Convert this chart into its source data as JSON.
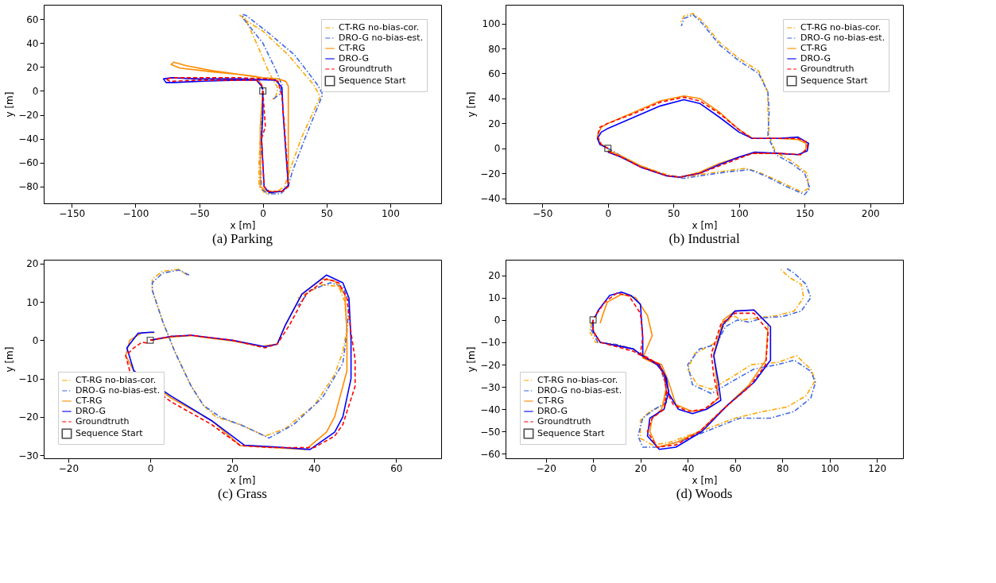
{
  "chart_data": [
    {
      "type": "line",
      "title": "(a) Parking",
      "xlabel": "x [m]",
      "ylabel": "y [m]",
      "xlim": [
        -172,
        140
      ],
      "ylim": [
        -94,
        72
      ],
      "xticks": [
        -150,
        -100,
        -50,
        0,
        50,
        100
      ],
      "yticks": [
        -80,
        -60,
        -40,
        -20,
        0,
        20,
        40,
        60
      ],
      "legend": "top right",
      "series": [
        {
          "name": "CT-RG no-bias-cor.",
          "color": "#ffa500",
          "line_style": "dashdot",
          "x": [
            0,
            -1,
            -2,
            -3,
            -3,
            2,
            10,
            17,
            20,
            30,
            45,
            40,
            20,
            0,
            -15,
            -18,
            -14,
            -5,
            5,
            12,
            10,
            6
          ],
          "values": [
            0,
            -20,
            -40,
            -60,
            -80,
            -86,
            -85,
            -80,
            -70,
            -40,
            -5,
            5,
            30,
            50,
            60,
            63,
            61,
            40,
            15,
            2,
            -5,
            -8
          ]
        },
        {
          "name": "DRO-G no-bias-est.",
          "color": "#4169e1",
          "line_style": "dashdot",
          "x": [
            0,
            -1,
            -1,
            -2,
            -1,
            4,
            14,
            20,
            23,
            33,
            47,
            43,
            25,
            5,
            -13,
            -16,
            -15,
            0,
            10,
            15,
            13,
            8
          ],
          "values": [
            0,
            -20,
            -40,
            -60,
            -82,
            -86,
            -86,
            -80,
            -68,
            -40,
            -3,
            5,
            30,
            48,
            63,
            64,
            60,
            40,
            18,
            5,
            -3,
            -7
          ]
        },
        {
          "name": "CT-RG",
          "color": "#ff8c00",
          "line_style": "solid",
          "x": [
            0,
            -2,
            -2,
            -2,
            3,
            15,
            20,
            20,
            20,
            20,
            18,
            12,
            0,
            -20,
            -40,
            -60,
            -70,
            -72,
            -65,
            -40,
            -20,
            -5,
            -1,
            0
          ],
          "values": [
            0,
            -30,
            -50,
            -80,
            -84,
            -84,
            -80,
            -50,
            -20,
            4,
            8,
            10,
            11,
            14,
            17,
            21,
            24,
            22,
            19,
            16,
            14,
            12,
            5,
            1.5
          ]
        },
        {
          "name": "DRO-G",
          "color": "#0000ff",
          "line_style": "solid",
          "x": [
            0,
            0,
            -1,
            0,
            1,
            5,
            15,
            20,
            18,
            16,
            15,
            10,
            -20,
            -50,
            -72,
            -78,
            -76,
            -70,
            -50,
            -20,
            -5,
            -1,
            0
          ],
          "values": [
            0,
            -20,
            -40,
            -60,
            -80,
            -85,
            -84,
            -79,
            -50,
            -20,
            3,
            9,
            10,
            10,
            11,
            10,
            7,
            7,
            8,
            9,
            9,
            4,
            1
          ]
        },
        {
          "name": "Groundtruth",
          "color": "#ff0000",
          "line_style": "dashed",
          "x": [
            0,
            1,
            2,
            -1,
            0,
            1,
            5,
            15,
            20,
            19,
            17,
            15,
            12,
            5,
            -20,
            -50,
            -70,
            -76,
            -73,
            -50,
            -20,
            -5,
            -1,
            0
          ],
          "values": [
            0,
            -15,
            -30,
            -40,
            -60,
            -80,
            -84,
            -84,
            -80,
            -60,
            -30,
            -5,
            8,
            10,
            11,
            11,
            11,
            10,
            8,
            9,
            9,
            9,
            5,
            1.5
          ]
        },
        {
          "name": "Sequence Start",
          "type": "scatter",
          "color": "#000000",
          "marker": "square",
          "x": [
            0
          ],
          "values": [
            0
          ]
        }
      ]
    },
    {
      "type": "line",
      "title": "(b) Industrial",
      "xlabel": "x [m]",
      "ylabel": "y [m]",
      "xlim": [
        -78,
        225
      ],
      "ylim": [
        -44,
        115
      ],
      "xticks": [
        -50,
        0,
        50,
        100,
        150,
        200
      ],
      "yticks": [
        -40,
        -20,
        0,
        20,
        40,
        60,
        80,
        100
      ],
      "legend": "top right",
      "series": [
        {
          "name": "CT-RG no-bias-cor.",
          "color": "#ffa500",
          "line_style": "dashdot",
          "x": [
            0,
            10,
            25,
            45,
            55,
            70,
            90,
            105,
            115,
            130,
            148,
            153,
            152,
            140,
            128,
            123,
            122,
            122,
            115,
            100,
            85,
            72,
            65,
            58,
            55
          ],
          "values": [
            0,
            -6,
            -14,
            -21,
            -23,
            -21,
            -18,
            -16,
            -19,
            -26,
            -35,
            -32,
            -20,
            -10,
            -3,
            10,
            30,
            45,
            62,
            72,
            85,
            102,
            108,
            106,
            100
          ]
        },
        {
          "name": "DRO-G no-bias-est.",
          "color": "#4169e1",
          "line_style": "dashdot",
          "x": [
            0,
            10,
            25,
            45,
            58,
            70,
            90,
            108,
            120,
            135,
            150,
            154,
            150,
            140,
            128,
            122,
            123,
            122,
            115,
            100,
            85,
            72,
            65,
            58,
            56
          ],
          "values": [
            0,
            -6,
            -15,
            -22,
            -24,
            -22,
            -19,
            -17,
            -22,
            -30,
            -37,
            -32,
            -20,
            -12,
            -5,
            10,
            30,
            45,
            60,
            70,
            83,
            100,
            107,
            104,
            98
          ]
        },
        {
          "name": "CT-RG",
          "color": "#ff8c00",
          "line_style": "solid",
          "x": [
            0,
            -6,
            -8,
            -5,
            0,
            20,
            40,
            58,
            70,
            85,
            100,
            110,
            130,
            145,
            151,
            151,
            147,
            130,
            110,
            100,
            85,
            70,
            55,
            45,
            25,
            10,
            0
          ],
          "values": [
            0,
            4,
            10,
            17,
            20,
            29,
            38,
            42,
            40,
            29,
            15,
            8,
            8,
            7,
            4,
            -1,
            -5,
            -4,
            -4,
            -7,
            -12,
            -19,
            -23,
            -22,
            -14,
            -6,
            -1.5
          ]
        },
        {
          "name": "DRO-G",
          "color": "#0000ff",
          "line_style": "solid",
          "x": [
            0,
            -6,
            -8,
            -5,
            0,
            20,
            40,
            58,
            70,
            85,
            100,
            110,
            130,
            145,
            153,
            152,
            145,
            130,
            112,
            100,
            85,
            70,
            55,
            45,
            25,
            10,
            0
          ],
          "values": [
            0,
            3,
            8,
            13,
            16,
            25,
            34,
            39,
            36,
            25,
            13,
            8,
            8,
            9,
            4,
            -2,
            -5,
            -4,
            -3,
            -7,
            -13,
            -20,
            -23,
            -22,
            -15,
            -7,
            -3
          ]
        },
        {
          "name": "Groundtruth",
          "color": "#ff0000",
          "line_style": "dashed",
          "x": [
            0,
            -5,
            -8,
            -6,
            0,
            20,
            40,
            58,
            70,
            85,
            100,
            110,
            130,
            145,
            152,
            152,
            147,
            130,
            110,
            100,
            85,
            70,
            55,
            45,
            25,
            10,
            0
          ],
          "values": [
            0,
            3,
            10,
            17,
            20,
            28,
            37,
            41,
            38,
            28,
            15,
            8,
            8,
            8,
            5,
            0,
            -5,
            -4,
            -4,
            -8,
            -14,
            -20,
            -23,
            -22,
            -15,
            -7,
            -2.5
          ]
        },
        {
          "name": "Sequence Start",
          "type": "scatter",
          "color": "#000000",
          "marker": "square",
          "x": [
            0
          ],
          "values": [
            0
          ]
        }
      ]
    },
    {
      "type": "line",
      "title": "(c) Grass",
      "xlabel": "x [m]",
      "ylabel": "y [m]",
      "xlim": [
        -26,
        71
      ],
      "ylim": [
        -30.8,
        21
      ],
      "xticks": [
        -20,
        0,
        20,
        40,
        60
      ],
      "yticks": [
        -30,
        -20,
        -10,
        0,
        10,
        20
      ],
      "legend": "bottom left",
      "series": [
        {
          "name": "CT-RG no-bias-cor.",
          "color": "#ffa500",
          "line_style": "dashdot",
          "x": [
            9,
            7,
            3,
            0.5,
            0.5,
            3,
            6,
            10,
            13,
            16,
            22,
            28,
            33,
            40,
            45,
            47,
            48,
            47.5,
            46,
            42,
            36
          ],
          "values": [
            17,
            18.5,
            18,
            16,
            13,
            5,
            -3,
            -12,
            -17,
            -20,
            -22,
            -25,
            -23,
            -17,
            -9,
            -3,
            3,
            10,
            14,
            14.5,
            11
          ]
        },
        {
          "name": "DRO-G no-bias-est.",
          "color": "#4169e1",
          "line_style": "dashdot",
          "x": [
            9.5,
            7,
            3,
            0.5,
            0.5,
            3,
            6,
            10,
            13,
            17,
            23,
            29,
            35,
            42,
            47,
            48,
            48.5,
            47,
            44,
            39,
            36
          ],
          "values": [
            17,
            18.3,
            17.5,
            15,
            13,
            5,
            -3,
            -12,
            -17,
            -20,
            -22.5,
            -25.5,
            -22,
            -15,
            -6,
            2,
            10,
            14,
            15,
            13,
            9
          ]
        },
        {
          "name": "CT-RG",
          "color": "#ff8c00",
          "line_style": "solid",
          "x": [
            0,
            5,
            10,
            20,
            27,
            31,
            33,
            37,
            42,
            45,
            47.5,
            48,
            48,
            45,
            43,
            38,
            30,
            22,
            15,
            5,
            -4,
            -6,
            -5,
            -2,
            0,
            1
          ],
          "values": [
            0,
            0.8,
            1.2,
            -0.2,
            -1.6,
            -1,
            4,
            12,
            16,
            15.5,
            12,
            2,
            -8,
            -20,
            -24,
            -28.5,
            -28,
            -27.5,
            -21,
            -15,
            -8,
            -4,
            0,
            2,
            2,
            2
          ]
        },
        {
          "name": "DRO-G",
          "color": "#0000ff",
          "line_style": "solid",
          "x": [
            0,
            5,
            10,
            20,
            28,
            31,
            33,
            37,
            43,
            47,
            48.5,
            49,
            49,
            47,
            45,
            39,
            30,
            23,
            15,
            5,
            -4,
            -5.7,
            -3,
            0,
            1
          ],
          "values": [
            0,
            1,
            1.3,
            0,
            -1.7,
            -1,
            4,
            12,
            17,
            15,
            11,
            0,
            -10,
            -20,
            -24,
            -28.5,
            -27.8,
            -27.4,
            -21,
            -14.5,
            -8,
            -2,
            1.8,
            2.1,
            2.1
          ]
        },
        {
          "name": "Groundtruth",
          "color": "#ff0000",
          "line_style": "dashed",
          "x": [
            0,
            5,
            10,
            20,
            28,
            31,
            34,
            38,
            43,
            46,
            48,
            49,
            50,
            50,
            47,
            45,
            40,
            30,
            22,
            15,
            5,
            -5,
            -6,
            -4,
            -2,
            -0.5
          ],
          "values": [
            0,
            1,
            1.3,
            0,
            -2,
            -1,
            4,
            12,
            16,
            15,
            11,
            2,
            -5,
            -12,
            -22,
            -25,
            -28,
            -28,
            -27.5,
            -22,
            -16,
            -8,
            -4,
            -2,
            -0.5,
            -0.8
          ]
        },
        {
          "name": "Sequence Start",
          "type": "scatter",
          "color": "#000000",
          "marker": "square",
          "x": [
            0
          ],
          "values": [
            0
          ]
        }
      ]
    },
    {
      "type": "line",
      "title": "(d) Woods",
      "xlabel": "x [m]",
      "ylabel": "y [m]",
      "xlim": [
        -37,
        131
      ],
      "ylim": [
        -62,
        27
      ],
      "xticks": [
        -20,
        0,
        20,
        40,
        60,
        80,
        100,
        120
      ],
      "yticks": [
        -60,
        -50,
        -40,
        -30,
        -20,
        -10,
        0,
        10,
        20
      ],
      "legend": "bottom left",
      "series": [
        {
          "name": "CT-RG no-bias-cor.",
          "color": "#ffa500",
          "line_style": "dashdot",
          "x": [
            -0.5,
            -1.5,
            1,
            10,
            17,
            22,
            28,
            31,
            30,
            24,
            20,
            20,
            25,
            32,
            45,
            60,
            72,
            82,
            90,
            94,
            92,
            86,
            78,
            67,
            58,
            50,
            44,
            40,
            43,
            52,
            55,
            59,
            63,
            70,
            78,
            85,
            89,
            88,
            83,
            79
          ],
          "values": [
            -1,
            -5,
            -10,
            -11,
            -13,
            -17,
            -20,
            -30,
            -38,
            -41,
            -45,
            -53,
            -56,
            -55,
            -50,
            -44,
            -41,
            -39,
            -34,
            -27,
            -22,
            -16,
            -19,
            -20,
            -26,
            -31,
            -29,
            -22,
            -15,
            -10,
            -3,
            2,
            0,
            1,
            2,
            4,
            10,
            16,
            19,
            23
          ]
        },
        {
          "name": "DRO-G no-bias-est.",
          "color": "#4169e1",
          "line_style": "dashdot",
          "x": [
            0,
            -1,
            2,
            10,
            17,
            22,
            28,
            31,
            31,
            26,
            21,
            19,
            21,
            28,
            38,
            50,
            62,
            75,
            85,
            92,
            94,
            92,
            85,
            78,
            68,
            58,
            50,
            42,
            40,
            45,
            52,
            56,
            61,
            66,
            72,
            80,
            88,
            92,
            90,
            85,
            82
          ],
          "values": [
            0,
            -4,
            -10,
            -11,
            -13,
            -17,
            -20,
            -30,
            -37,
            -40,
            -44,
            -52,
            -57,
            -57,
            -54,
            -49,
            -44,
            -44,
            -41,
            -35,
            -28,
            -23,
            -18,
            -20,
            -22,
            -28,
            -33,
            -29,
            -20,
            -13,
            -11,
            -3,
            0,
            -1,
            1,
            1.5,
            4,
            10,
            16,
            21,
            23
          ]
        },
        {
          "name": "CT-RG",
          "color": "#ff8c00",
          "line_style": "solid",
          "x": [
            3,
            4,
            6,
            12,
            18,
            23,
            25,
            23,
            21,
            27,
            30,
            31,
            29,
            25,
            24,
            27,
            35,
            45,
            55,
            66,
            73,
            74,
            68,
            60,
            55,
            51,
            52,
            53,
            48,
            42,
            35,
            32,
            29,
            22,
            17,
            10,
            3,
            0.5,
            -0.5
          ],
          "values": [
            -1.5,
            2,
            8,
            11.5,
            10,
            2,
            -7,
            -12,
            -17,
            -20,
            -24,
            -30,
            -40,
            -44,
            -50,
            -57,
            -55,
            -50,
            -40,
            -29,
            -18,
            -2,
            4.5,
            4,
            0,
            -15,
            -25,
            -35,
            -40,
            -41,
            -38,
            -28,
            -20,
            -17,
            -13,
            -11.5,
            -10,
            -6,
            -1
          ]
        },
        {
          "name": "DRO-G",
          "color": "#0000ff",
          "line_style": "solid",
          "x": [
            0,
            0,
            3,
            10,
            17,
            22,
            28,
            31,
            32,
            36,
            42,
            48,
            54,
            53,
            51,
            55,
            60,
            68,
            75,
            75,
            68,
            57,
            46,
            35,
            28,
            23,
            24,
            30,
            32,
            30,
            27,
            21,
            21,
            20,
            16,
            12,
            7,
            2,
            1
          ],
          "values": [
            0,
            -5,
            -10,
            -11.5,
            -13,
            -17,
            -20,
            -26,
            -33,
            -40,
            -42,
            -40,
            -36,
            -28,
            -16,
            -2,
            4,
            4.5,
            -3,
            -18,
            -28,
            -38,
            -50,
            -57,
            -58,
            -52,
            -44,
            -40,
            -32,
            -24,
            -20,
            -16,
            -8,
            7,
            11,
            12.5,
            11,
            4,
            1.5
          ]
        },
        {
          "name": "Groundtruth",
          "color": "#ff0000",
          "line_style": "dashed",
          "x": [
            0,
            0,
            3,
            10,
            17,
            22,
            28,
            30,
            31,
            34,
            40,
            47,
            53,
            51,
            50,
            54,
            60,
            68,
            74,
            73,
            66,
            55,
            45,
            35,
            27,
            23,
            25,
            30,
            31,
            30,
            28,
            20,
            21,
            20,
            15,
            10,
            5,
            1,
            0.5
          ],
          "values": [
            0,
            -5,
            -10,
            -12,
            -14,
            -17,
            -20,
            -25,
            -32,
            -38,
            -41,
            -40,
            -35,
            -25,
            -15,
            -2,
            3,
            3,
            -5,
            -20,
            -30,
            -40,
            -50,
            -56,
            -57,
            -50,
            -44,
            -40,
            -32,
            -25,
            -20,
            -15,
            -8,
            3,
            11,
            12,
            8,
            2,
            1.2
          ]
        },
        {
          "name": "Sequence Start",
          "type": "scatter",
          "color": "#000000",
          "marker": "square",
          "x": [
            0
          ],
          "values": [
            0
          ]
        }
      ]
    }
  ]
}
